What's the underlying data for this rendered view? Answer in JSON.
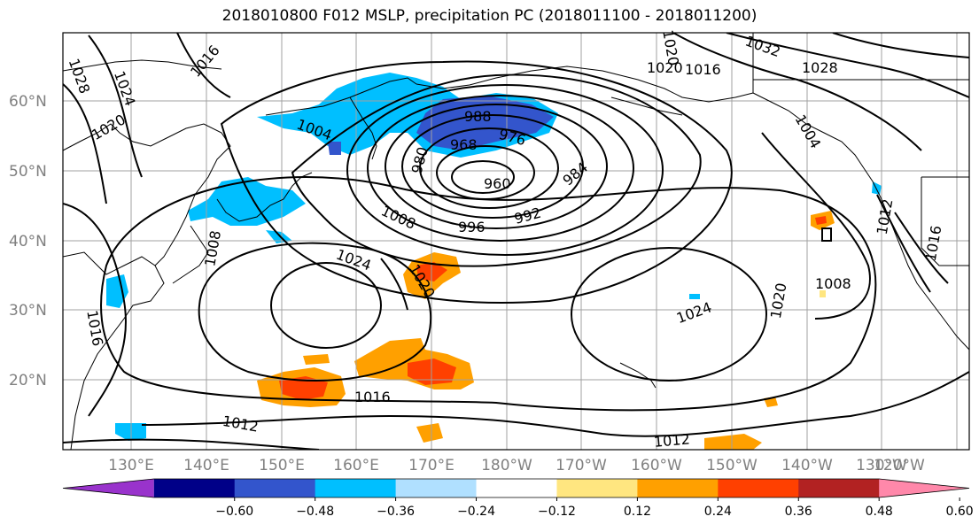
{
  "title": "2018010800 F012 MSLP, precipitation PC (2018011100 - 2018011200)",
  "map": {
    "lat_ticks": [
      "60°N",
      "50°N",
      "40°N",
      "30°N",
      "20°N"
    ],
    "lon_ticks": [
      "130°E",
      "140°E",
      "150°E",
      "160°E",
      "170°E",
      "180°W",
      "170°W",
      "160°W",
      "150°W",
      "140°W",
      "130°W",
      "120°W"
    ],
    "contour_labels": [
      {
        "id": "l1028a",
        "text": "1028"
      },
      {
        "id": "l1024a",
        "text": "1024"
      },
      {
        "id": "l1020a",
        "text": "1020"
      },
      {
        "id": "l1016a",
        "text": "1016"
      },
      {
        "id": "l1004a",
        "text": "1004"
      },
      {
        "id": "l988",
        "text": "988"
      },
      {
        "id": "l976",
        "text": "976"
      },
      {
        "id": "l968",
        "text": "968"
      },
      {
        "id": "l980",
        "text": "980"
      },
      {
        "id": "l960",
        "text": "960"
      },
      {
        "id": "l984",
        "text": "984"
      },
      {
        "id": "l992",
        "text": "992"
      },
      {
        "id": "l996",
        "text": "996"
      },
      {
        "id": "l1008a",
        "text": "1008"
      },
      {
        "id": "l1008b",
        "text": "1008"
      },
      {
        "id": "l1024b",
        "text": "1024"
      },
      {
        "id": "l1020b",
        "text": "1020"
      },
      {
        "id": "l1016b",
        "text": "1016"
      },
      {
        "id": "l1012a",
        "text": "1012"
      },
      {
        "id": "l1012b",
        "text": "1012"
      },
      {
        "id": "l1024c",
        "text": "1024"
      },
      {
        "id": "l1020c",
        "text": "1020"
      },
      {
        "id": "l1008c",
        "text": "1008"
      },
      {
        "id": "l1004b",
        "text": "1004"
      },
      {
        "id": "l1032",
        "text": "1032"
      },
      {
        "id": "l1028b",
        "text": "1028"
      },
      {
        "id": "l1020d",
        "text": "1020"
      },
      {
        "id": "l1016c",
        "text": "1016"
      },
      {
        "id": "l1012c",
        "text": "1012"
      },
      {
        "id": "l1016d",
        "text": "1016"
      },
      {
        "id": "l1020e",
        "text": "1020"
      },
      {
        "id": "l1016e",
        "text": "1016"
      }
    ]
  },
  "colorbar": {
    "colors": [
      "#9933cc",
      "#000088",
      "#3355cc",
      "#00bfff",
      "#b0e0ff",
      "#ffffff",
      "#ffe680",
      "#ffa000",
      "#ff4000",
      "#b22222",
      "#ff88aa"
    ],
    "tick_labels": [
      "−0.60",
      "−0.48",
      "−0.36",
      "−0.24",
      "−0.12",
      "0.12",
      "0.24",
      "0.36",
      "0.48",
      "0.60"
    ]
  }
}
